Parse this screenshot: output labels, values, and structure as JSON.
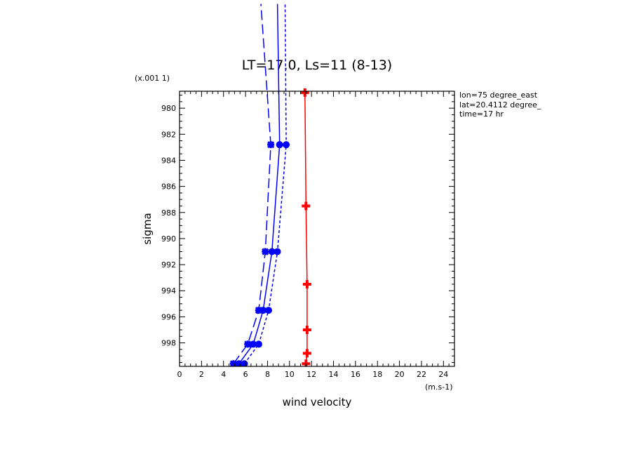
{
  "chart_data": {
    "type": "line",
    "title": "LT=17.0, Ls=11 (8-13)",
    "xlabel": "wind velocity",
    "ylabel": "sigma",
    "x_unit": "(m.s-1)",
    "y_unit": "(x.001 1)",
    "xlim": [
      0,
      25
    ],
    "ylim": [
      999.8,
      978.7
    ],
    "x_ticks": [
      "0",
      "2",
      "4",
      "6",
      "8",
      "10",
      "12",
      "14",
      "16",
      "18",
      "20",
      "22",
      "24"
    ],
    "y_ticks": [
      "980",
      "982",
      "984",
      "986",
      "988",
      "990",
      "992",
      "994",
      "996",
      "998"
    ],
    "annotations": [
      "lon=75 degree_east",
      "lat=20.4112 degree_",
      "time=17 hr"
    ],
    "series": [
      {
        "style": "long-dash",
        "color": "#0000ff",
        "marker": "star",
        "x": [
          4.9,
          6.2,
          7.2,
          7.8,
          8.3,
          7.4
        ],
        "y": [
          999.6,
          998.1,
          995.5,
          991.0,
          982.8,
          972.0
        ]
      },
      {
        "style": "solid",
        "color": "#0000ff",
        "marker": "circle",
        "x": [
          5.4,
          6.7,
          7.6,
          8.4,
          9.1,
          8.9
        ],
        "y": [
          999.6,
          998.1,
          995.5,
          991.0,
          982.8,
          972.0
        ]
      },
      {
        "style": "short-dash",
        "color": "#0000ff",
        "marker": "circle",
        "x": [
          5.9,
          7.2,
          8.1,
          8.9,
          9.7,
          9.6
        ],
        "y": [
          999.6,
          998.1,
          995.5,
          991.0,
          982.8,
          972.0
        ]
      },
      {
        "style": "solid",
        "color": "#ff0000",
        "marker": "plus",
        "x": [
          11.5,
          11.6,
          11.6,
          11.6,
          11.5,
          11.4
        ],
        "y": [
          999.6,
          998.8,
          997.0,
          993.5,
          987.5,
          978.8
        ]
      }
    ]
  }
}
